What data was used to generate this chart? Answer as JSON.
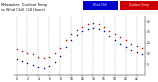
{
  "title": "Milwaukee  Outdoor Temp",
  "title2": "vs Wind Chill  (24 Hours)",
  "hours": [
    0,
    1,
    2,
    3,
    4,
    5,
    6,
    7,
    8,
    9,
    10,
    11,
    12,
    13,
    14,
    15,
    16,
    17,
    18,
    19,
    20,
    21,
    22,
    23
  ],
  "temp": [
    19,
    17,
    15,
    14,
    12,
    11,
    12,
    15,
    20,
    27,
    33,
    37,
    40,
    42,
    43,
    42,
    40,
    36,
    33,
    30,
    27,
    24,
    22,
    20
  ],
  "wind_chill": [
    10,
    8,
    6,
    4,
    2,
    1,
    3,
    7,
    13,
    21,
    27,
    32,
    36,
    38,
    39,
    38,
    36,
    31,
    27,
    24,
    21,
    18,
    16,
    14
  ],
  "temp_color": "#cc0000",
  "wind_chill_color": "#0000cc",
  "bg_color": "#ffffff",
  "grid_color": "#888888",
  "ylim": [
    -5,
    50
  ],
  "ytick_vals": [
    5,
    15,
    25,
    35,
    45
  ],
  "ytick_labels": [
    "5",
    "15",
    "25",
    "35",
    "45"
  ],
  "legend_wc_label": "Wind Chill",
  "legend_temp_label": "Outdoor Temp",
  "legend_wc_color": "#0000cc",
  "legend_temp_color": "#cc0000",
  "dot_size": 1.2,
  "left_label_text": "Milwaukee",
  "left_label2": "vs Wind Chill",
  "left_label3": "(24 Hours)"
}
